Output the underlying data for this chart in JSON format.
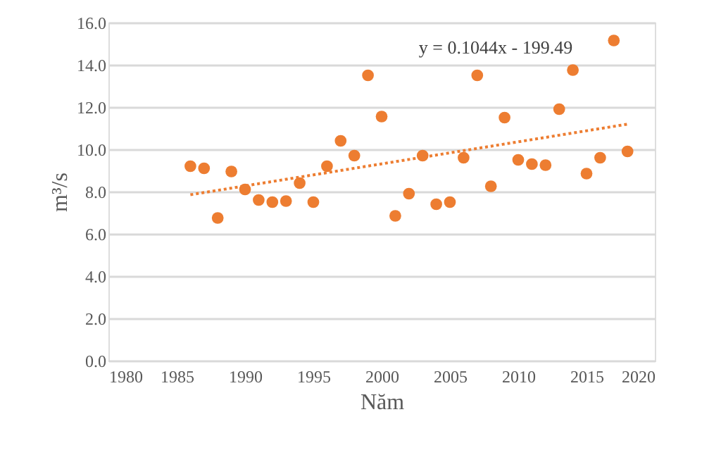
{
  "chart_data": {
    "type": "scatter",
    "xlabel": "Năm",
    "ylabel": "m³/s",
    "annotations": [
      "y = 0.1044x - 199.49"
    ],
    "xlim": [
      1980,
      2020
    ],
    "xticks": [
      1980,
      1985,
      1990,
      1995,
      2000,
      2005,
      2010,
      2015,
      2020
    ],
    "ylim": [
      0,
      16
    ],
    "yticks": [
      {
        "value": 0,
        "label": "0.0"
      },
      {
        "value": 2,
        "label": "2.0"
      },
      {
        "value": 4,
        "label": "4.0"
      },
      {
        "value": 6,
        "label": "6.0"
      },
      {
        "value": 8,
        "label": "8.0"
      },
      {
        "value": 10,
        "label": "10.0"
      },
      {
        "value": 12,
        "label": "12.0"
      },
      {
        "value": 14,
        "label": "14.0"
      },
      {
        "value": 16,
        "label": "16.0"
      }
    ],
    "grid": "y",
    "series": [
      {
        "marker": "circle",
        "color": "#ed7d31",
        "x": [
          1986,
          1987,
          1988,
          1989,
          1990,
          1991,
          1992,
          1993,
          1994,
          1995,
          1996,
          1997,
          1998,
          1999,
          2000,
          2001,
          2002,
          2003,
          2004,
          2005,
          2006,
          2007,
          2008,
          2009,
          2010,
          2011,
          2012,
          2013,
          2014,
          2015,
          2016,
          2017,
          2018
        ],
        "values": [
          9.2,
          9.1,
          6.75,
          8.95,
          8.1,
          7.6,
          7.5,
          7.55,
          8.4,
          7.5,
          9.2,
          10.4,
          9.7,
          13.5,
          11.55,
          6.85,
          7.9,
          9.7,
          7.4,
          7.5,
          9.6,
          13.5,
          8.25,
          11.5,
          9.5,
          9.3,
          9.25,
          11.9,
          13.75,
          8.85,
          9.6,
          15.15,
          9.9
        ]
      },
      {
        "type": "line",
        "line_style": "dotted",
        "color": "#ed7d31",
        "x": [
          1986,
          2018
        ],
        "values": [
          7.85,
          11.19
        ]
      }
    ]
  }
}
